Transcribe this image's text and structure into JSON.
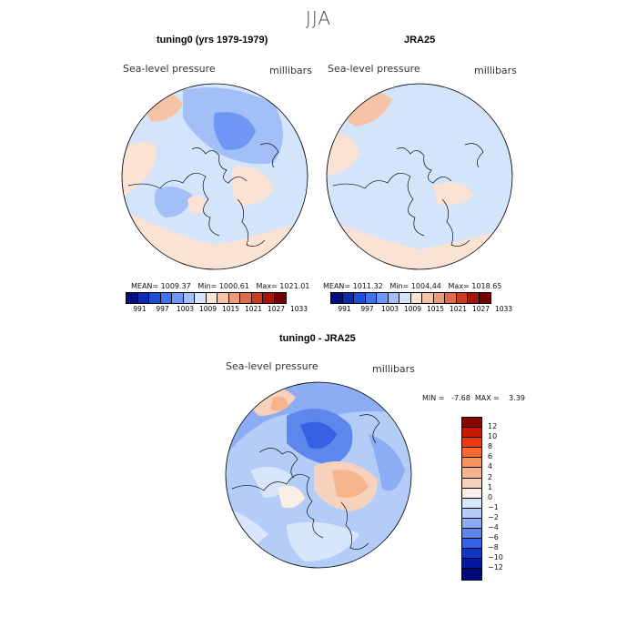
{
  "season": "JJA",
  "panel_left": {
    "title": "tuning0 (yrs 1979-1979)",
    "variable": "Sea-level pressure",
    "units": "millibars",
    "stats": "MEAN= 1009.37   Min= 1000.61   Max= 1021.01"
  },
  "panel_right": {
    "title": "JRA25",
    "variable": "Sea-level pressure",
    "units": "millibars",
    "stats": "MEAN= 1011.32   Min= 1004.44   Max= 1018.65"
  },
  "panel_diff": {
    "title": "tuning0 - JRA25",
    "variable": "Sea-level pressure",
    "units": "millibars",
    "minmax": "MIN =   -7.68  MAX =    3.39"
  },
  "abs_colorbar": {
    "labels": [
      "991",
      "997",
      "1003",
      "1009",
      "1015",
      "1021",
      "1027",
      "1033"
    ],
    "colors": [
      "#000e80",
      "#0a2bb0",
      "#1e4fd8",
      "#3f72f0",
      "#6f97f5",
      "#a2bff8",
      "#d4e4fb",
      "#fbe3d4",
      "#f6c3a8",
      "#ee9b78",
      "#e06c4c",
      "#cc3a22",
      "#a61505",
      "#720000"
    ]
  },
  "diff_colorbar": {
    "labels": [
      "12",
      "10",
      "8",
      "6",
      "4",
      "2",
      "1",
      "0",
      "−1",
      "−2",
      "−4",
      "−6",
      "−8",
      "−10",
      "−12"
    ],
    "colors": [
      "#8a0000",
      "#c41a00",
      "#ee3a10",
      "#fb6a35",
      "#f9935d",
      "#f7b58e",
      "#f6d1bb",
      "#fbeee4",
      "#d7e6fb",
      "#b4cdf8",
      "#8cadf4",
      "#5e87ec",
      "#3661e2",
      "#1236c8",
      "#031aa0",
      "#00087a"
    ]
  }
}
